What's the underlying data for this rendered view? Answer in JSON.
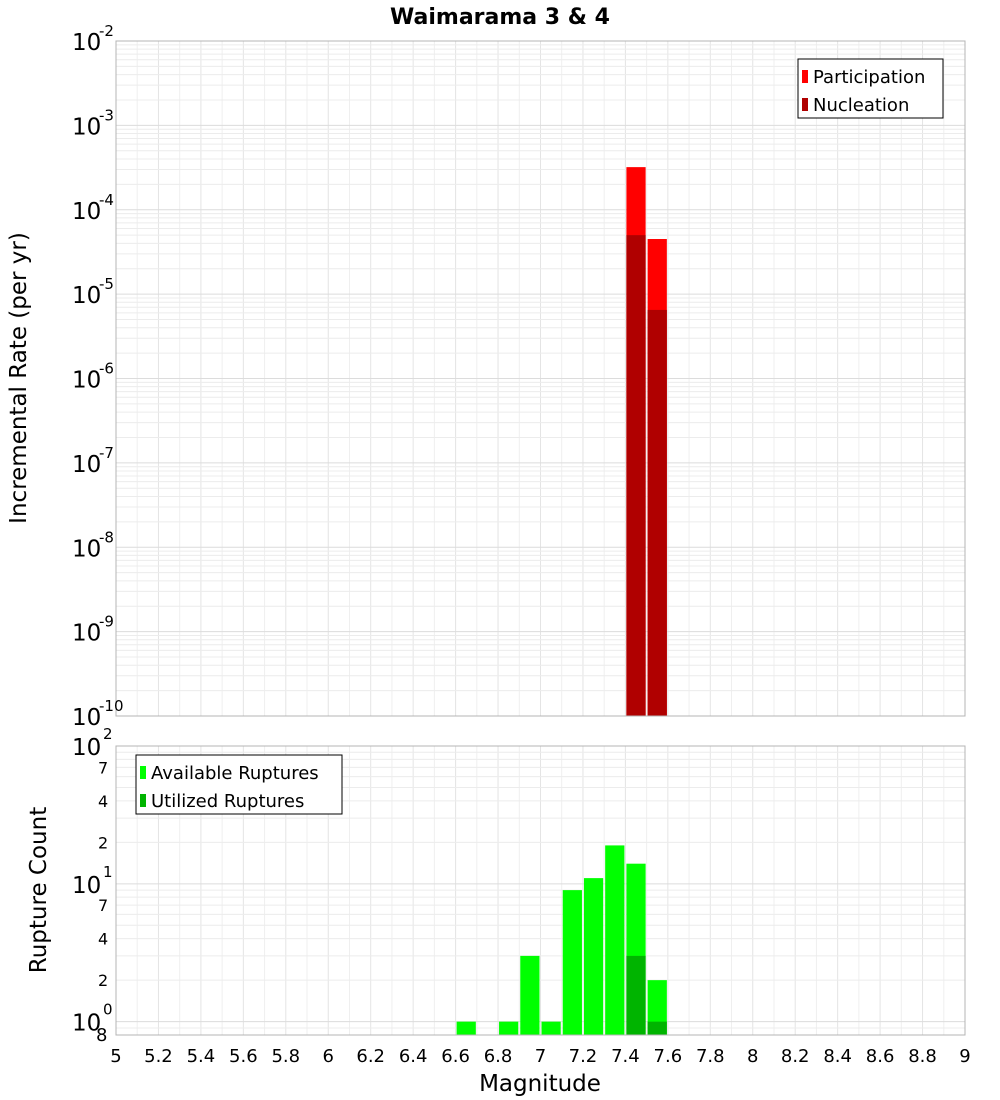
{
  "chart_data": [
    {
      "id": "rates",
      "type": "bar",
      "title": "Waimarama 3 & 4",
      "ylabel": "Incremental Rate (per yr)",
      "yscale": "log",
      "ylim": [
        1e-10,
        0.01
      ],
      "xlim": [
        5,
        9
      ],
      "bin_width": 0.1,
      "y_ticks": [
        {
          "base": "10",
          "exp": "-10",
          "value": 1e-10
        },
        {
          "base": "10",
          "exp": "-9",
          "value": 1e-09
        },
        {
          "base": "10",
          "exp": "-8",
          "value": 1e-08
        },
        {
          "base": "10",
          "exp": "-7",
          "value": 1e-07
        },
        {
          "base": "10",
          "exp": "-6",
          "value": 1e-06
        },
        {
          "base": "10",
          "exp": "-5",
          "value": 1e-05
        },
        {
          "base": "10",
          "exp": "-4",
          "value": 0.0001
        },
        {
          "base": "10",
          "exp": "-3",
          "value": 0.001
        },
        {
          "base": "10",
          "exp": "-2",
          "value": 0.01
        }
      ],
      "legend_position": "top-right",
      "series": [
        {
          "name": "Participation",
          "color": "#ff0000",
          "x": [
            7.45,
            7.55
          ],
          "values": [
            0.00032,
            4.5e-05
          ]
        },
        {
          "name": "Nucleation",
          "color": "#b00000",
          "x": [
            7.45,
            7.55
          ],
          "values": [
            5e-05,
            6.5e-06
          ]
        }
      ]
    },
    {
      "id": "counts",
      "type": "bar",
      "ylabel": "Rupture Count",
      "xlabel": "Magnitude",
      "yscale": "log",
      "ylim": [
        0.8,
        100
      ],
      "xlim": [
        5,
        9
      ],
      "bin_width": 0.1,
      "x_ticks": [
        "5",
        "5.2",
        "5.4",
        "5.6",
        "5.8",
        "6",
        "6.2",
        "6.4",
        "6.6",
        "6.8",
        "7",
        "7.2",
        "7.4",
        "7.6",
        "7.8",
        "8",
        "8.2",
        "8.4",
        "8.6",
        "8.8",
        "9"
      ],
      "y_major_ticks": [
        {
          "base": "10",
          "exp": "0",
          "value": 1
        },
        {
          "base": "10",
          "exp": "1",
          "value": 10
        },
        {
          "base": "10",
          "exp": "2",
          "value": 100
        }
      ],
      "y_minor_ticks": [
        {
          "label": "8",
          "value": 0.8
        },
        {
          "label": "2",
          "value": 2
        },
        {
          "label": "4",
          "value": 4
        },
        {
          "label": "7",
          "value": 7
        },
        {
          "label": "2",
          "value": 20
        },
        {
          "label": "4",
          "value": 40
        },
        {
          "label": "7",
          "value": 70
        }
      ],
      "legend_position": "top-left",
      "series": [
        {
          "name": "Available Ruptures",
          "color": "#00ff00",
          "x": [
            6.65,
            6.85,
            6.95,
            7.05,
            7.15,
            7.25,
            7.35,
            7.45,
            7.55
          ],
          "values": [
            1,
            1,
            3,
            1,
            9,
            11,
            19,
            14,
            2
          ]
        },
        {
          "name": "Utilized Ruptures",
          "color": "#00b400",
          "x": [
            7.45,
            7.55
          ],
          "values": [
            3,
            1
          ]
        }
      ]
    }
  ]
}
